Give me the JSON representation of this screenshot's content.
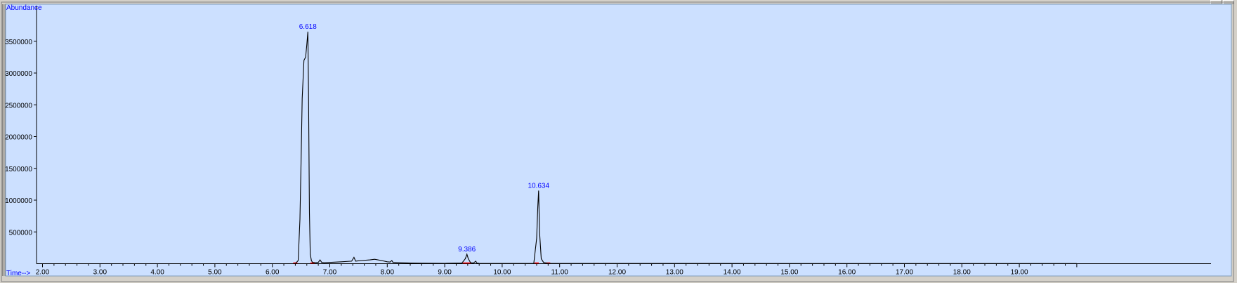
{
  "window": {
    "buttons": [
      "minimize",
      "maximize"
    ]
  },
  "colors": {
    "plot_background": "#cce0ff",
    "trace": "#000000",
    "peak_label": "#0000ff",
    "baseline_marker": "#ff0000",
    "axis_title": "#0000ff"
  },
  "chart_data": {
    "type": "line",
    "title": "",
    "xlabel": "Time-->",
    "ylabel": "Abundance",
    "xlim": [
      2.0,
      20.0
    ],
    "ylim": [
      0,
      3600000
    ],
    "grid": false,
    "x_ticks": [
      2.0,
      3.0,
      4.0,
      5.0,
      6.0,
      7.0,
      8.0,
      9.0,
      10.0,
      11.0,
      12.0,
      13.0,
      14.0,
      15.0,
      16.0,
      17.0,
      18.0,
      19.0
    ],
    "x_tick_labels": [
      "2.00",
      "3.00",
      "4.00",
      "5.00",
      "6.00",
      "7.00",
      "8.00",
      "9.00",
      "10.00",
      "11.00",
      "12.00",
      "13.00",
      "14.00",
      "15.00",
      "16.00",
      "17.00",
      "18.00",
      "19.00"
    ],
    "y_ticks": [
      500000,
      1000000,
      1500000,
      2000000,
      2500000,
      3000000,
      3500000
    ],
    "y_tick_labels": [
      "500000",
      "1000000",
      "1500000",
      "2000000",
      "2500000",
      "3000000",
      "3500000"
    ],
    "series": [
      {
        "x": [
          2.0,
          6.4,
          6.45,
          6.48,
          6.5,
          6.52,
          6.55,
          6.58,
          6.6,
          6.618,
          6.63,
          6.645,
          6.66,
          6.68,
          6.7,
          6.75,
          6.8,
          6.83,
          6.86,
          6.9,
          7.0,
          7.2,
          7.38,
          7.42,
          7.45,
          7.55,
          7.7,
          7.78,
          7.9,
          8.0,
          8.05,
          8.08,
          8.1,
          8.2,
          8.4,
          8.6,
          9.0,
          9.3,
          9.36,
          9.386,
          9.41,
          9.45,
          9.5,
          9.54,
          9.56,
          9.6,
          10.0,
          10.55,
          10.6,
          10.62,
          10.634,
          10.65,
          10.68,
          10.72,
          10.8,
          11.5,
          20.0
        ],
        "y": [
          0,
          0,
          50000,
          700000,
          1600000,
          2600000,
          3200000,
          3250000,
          3450000,
          3650000,
          2700000,
          800000,
          150000,
          50000,
          20000,
          15000,
          20000,
          60000,
          20000,
          15000,
          20000,
          30000,
          40000,
          100000,
          40000,
          50000,
          60000,
          70000,
          50000,
          30000,
          25000,
          50000,
          20000,
          15000,
          10000,
          8000,
          5000,
          10000,
          80000,
          150000,
          80000,
          15000,
          10000,
          40000,
          10000,
          5000,
          3000,
          5000,
          400000,
          900000,
          1150000,
          500000,
          80000,
          20000,
          5000,
          3000,
          2000
        ]
      }
    ],
    "annotations": [
      {
        "text": "6.618",
        "x": 6.618,
        "y": 3650000
      },
      {
        "text": "9.386",
        "x": 9.386,
        "y": 150000
      },
      {
        "text": "10.634",
        "x": 10.634,
        "y": 1150000
      }
    ],
    "integration_markers": [
      6.4,
      6.7,
      9.35,
      9.42,
      10.6,
      10.8
    ]
  }
}
